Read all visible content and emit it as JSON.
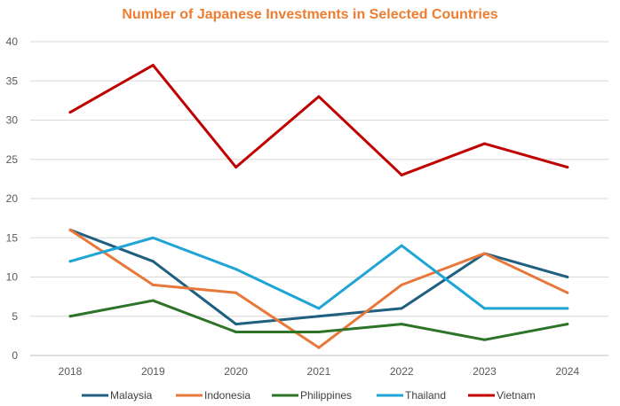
{
  "chart_data": {
    "type": "line",
    "title": "Number of Japanese Investments in Selected Countries",
    "categories": [
      "2018",
      "2019",
      "2020",
      "2021",
      "2022",
      "2023",
      "2024"
    ],
    "ylim": [
      0,
      40
    ],
    "yticks": [
      0,
      5,
      10,
      15,
      20,
      25,
      30,
      35,
      40
    ],
    "grid": true,
    "legend_position": "bottom",
    "xlabel": "",
    "ylabel": "",
    "series": [
      {
        "name": "Malaysia",
        "color": "#1F5F7F",
        "values": [
          16,
          12,
          4,
          5,
          6,
          13,
          10
        ]
      },
      {
        "name": "Indonesia",
        "color": "#E8773A",
        "values": [
          16,
          9,
          8,
          1,
          9,
          13,
          8
        ]
      },
      {
        "name": "Philippines",
        "color": "#2E7428",
        "values": [
          5,
          7,
          3,
          3,
          4,
          2,
          4
        ]
      },
      {
        "name": "Thailand",
        "color": "#1FA4D6",
        "values": [
          12,
          15,
          11,
          6,
          14,
          6,
          6
        ]
      },
      {
        "name": "Vietnam",
        "color": "#C00000",
        "values": [
          31,
          37,
          24,
          33,
          23,
          27,
          24
        ]
      }
    ]
  }
}
